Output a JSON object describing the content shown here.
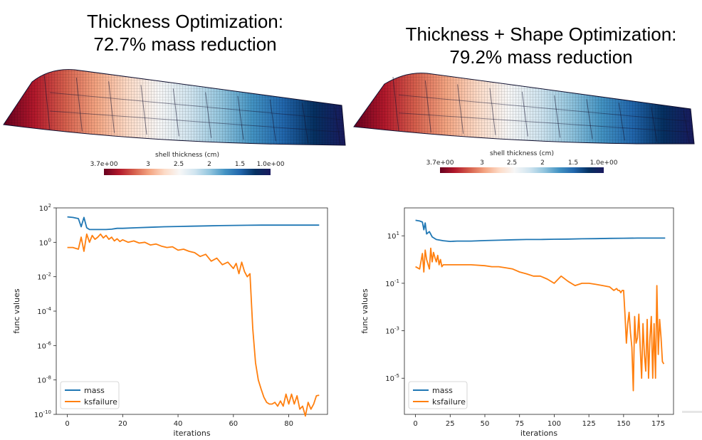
{
  "titles": {
    "left": "Thickness Optimization:\n72.7% mass reduction",
    "right": "Thickness + Shape Optimization:\n79.2% mass reduction"
  },
  "colorbar": {
    "title": "shell thickness (cm)",
    "ticks": [
      "3.7e+00",
      "3",
      "2.5",
      "2",
      "1.5",
      "1.0e+00"
    ],
    "colors": [
      "#67001f",
      "#b2182b",
      "#d6604d",
      "#f4a582",
      "#fddbc7",
      "#f7f7f7",
      "#d1e5f0",
      "#92c5de",
      "#4393c3",
      "#2166ac",
      "#053061",
      "#1a1a5e"
    ]
  },
  "chart_data": [
    {
      "type": "line",
      "ylabel": "func values",
      "xlabel": "iterations",
      "yscale": "log",
      "xlim": [
        -4,
        94
      ],
      "ylim": [
        1e-10,
        100
      ],
      "xticks": [
        0,
        20,
        40,
        60,
        80
      ],
      "ytick_exponents": [
        2,
        0,
        -2,
        -4,
        -6,
        -8,
        -10
      ],
      "ytick_base": "10",
      "legend": "lower-left",
      "series": [
        {
          "name": "mass",
          "color": "#1f77b4",
          "x": [
            0,
            2,
            4,
            5,
            6,
            7,
            8,
            10,
            12,
            14,
            16,
            18,
            20,
            25,
            30,
            35,
            40,
            45,
            50,
            55,
            60,
            65,
            70,
            75,
            80,
            85,
            91
          ],
          "y": [
            30,
            28,
            24,
            8,
            28,
            7,
            5.5,
            5.5,
            5.5,
            5.5,
            5.8,
            6.5,
            6.5,
            7,
            7.5,
            8,
            8.3,
            8.6,
            9,
            9.3,
            9.6,
            9.8,
            10,
            10,
            10,
            10,
            10
          ]
        },
        {
          "name": "ksfailure",
          "color": "#ff7f0e",
          "x": [
            0,
            2,
            4,
            5,
            6,
            7,
            8,
            9,
            10,
            11,
            12,
            13,
            14,
            15,
            16,
            17,
            18,
            19,
            20,
            22,
            24,
            26,
            28,
            30,
            32,
            34,
            36,
            38,
            40,
            42,
            44,
            46,
            48,
            50,
            52,
            54,
            56,
            58,
            60,
            61,
            62,
            63,
            64,
            65,
            66,
            67,
            68,
            69,
            70,
            71,
            72,
            73,
            74,
            75,
            76,
            77,
            78,
            79,
            80,
            81,
            82,
            83,
            84,
            85,
            86,
            87,
            88,
            89,
            90,
            91
          ],
          "y": [
            0.5,
            0.5,
            0.4,
            2,
            0.3,
            3,
            1,
            2.5,
            1.5,
            2,
            3,
            1.8,
            2.5,
            1.5,
            2,
            1.2,
            1.6,
            1.1,
            1.4,
            1,
            1.2,
            0.9,
            1,
            0.7,
            0.8,
            0.6,
            0.5,
            0.55,
            0.35,
            0.4,
            0.3,
            0.25,
            0.15,
            0.2,
            0.08,
            0.12,
            0.05,
            0.07,
            0.03,
            0.06,
            0.015,
            0.07,
            0.02,
            0.01,
            0.015,
            1e-05,
            1e-07,
            1e-08,
            3e-09,
            1e-09,
            5e-10,
            4e-10,
            4e-10,
            5e-10,
            3e-10,
            6e-10,
            3e-10,
            1.5e-09,
            4e-10,
            1.5e-09,
            4e-10,
            1.2e-09,
            2e-10,
            3e-10,
            8e-11,
            5e-10,
            2e-10,
            4e-10,
            1.2e-09,
            1.3e-09
          ]
        }
      ]
    },
    {
      "type": "line",
      "ylabel": "func values",
      "xlabel": "iterations",
      "yscale": "log",
      "xlim": [
        -8,
        186
      ],
      "ylim": [
        3e-07,
        150
      ],
      "xticks": [
        0,
        25,
        50,
        75,
        100,
        125,
        150,
        175
      ],
      "ytick_exponents": [
        1,
        -1,
        -3,
        -5
      ],
      "ytick_base": "10",
      "legend": "lower-left",
      "series": [
        {
          "name": "mass",
          "color": "#1f77b4",
          "x": [
            0,
            3,
            5,
            6,
            7,
            8,
            10,
            12,
            15,
            20,
            25,
            30,
            40,
            50,
            60,
            70,
            80,
            90,
            100,
            110,
            120,
            130,
            140,
            150,
            160,
            170,
            180
          ],
          "y": [
            45,
            42,
            38,
            18,
            35,
            12,
            15,
            9,
            7,
            6.2,
            5.8,
            6,
            6,
            6.3,
            6.5,
            6.8,
            7,
            7,
            7.2,
            7.3,
            7.5,
            7.6,
            7.8,
            7.9,
            8,
            8,
            8
          ]
        },
        {
          "name": "ksfailure",
          "color": "#ff7f0e",
          "x": [
            0,
            3,
            5,
            6,
            7,
            8,
            10,
            11,
            12,
            13,
            14,
            15,
            16,
            17,
            18,
            19,
            20,
            25,
            30,
            40,
            50,
            55,
            60,
            65,
            70,
            75,
            80,
            85,
            90,
            95,
            100,
            105,
            110,
            115,
            120,
            125,
            130,
            135,
            140,
            143,
            145,
            146,
            147,
            148,
            149,
            150,
            151,
            152,
            153,
            154,
            155,
            156,
            157,
            158,
            159,
            160,
            161,
            162,
            163,
            164,
            165,
            166,
            167,
            168,
            169,
            170,
            171,
            172,
            173,
            174,
            175,
            176,
            177,
            178,
            179
          ],
          "y": [
            0.5,
            0.4,
            1.8,
            0.3,
            2.5,
            1,
            0.4,
            3,
            0.8,
            2,
            1.2,
            0.8,
            1.5,
            0.6,
            1,
            0.5,
            0.6,
            0.6,
            0.6,
            0.6,
            0.55,
            0.5,
            0.5,
            0.45,
            0.4,
            0.3,
            0.25,
            0.2,
            0.2,
            0.15,
            0.1,
            0.2,
            0.12,
            0.08,
            0.1,
            0.1,
            0.09,
            0.08,
            0.07,
            0.05,
            0.06,
            0.05,
            0.05,
            0.04,
            0.05,
            0.05,
            0.005,
            0.0003,
            0.002,
            0.006,
            0.0008,
            0.0002,
            3e-06,
            0.004,
            0.0003,
            0.0005,
            0.005,
            0.0002,
            1e-05,
            0.002,
            0.0001,
            2e-05,
            0.003,
            1e-05,
            0.0005,
            0.004,
            1e-05,
            0.002,
            1e-05,
            0.08,
            0.0001,
            0.003,
            0.0005,
            5e-05,
            4e-05
          ]
        }
      ]
    }
  ]
}
